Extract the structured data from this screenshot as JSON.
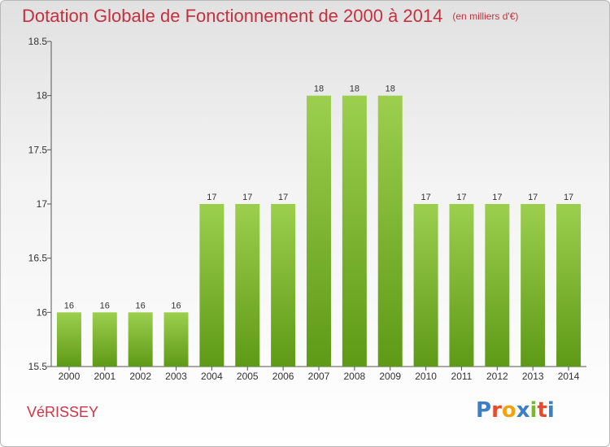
{
  "title": "Dotation Globale de Fonctionnement de 2000 à 2014",
  "unit": "(en milliers d'€)",
  "location": "VéRISSEY",
  "brand": {
    "letters": [
      "P",
      "r",
      "o",
      "x",
      "i",
      "t",
      "i"
    ],
    "colors": [
      "#3d7ec4",
      "#e94b2a",
      "#f2a20a",
      "#3d7ec4",
      "#7bb62b",
      "#e94b2a",
      "#3d7ec4"
    ]
  },
  "colors": {
    "bar_top": "#9ccf4e",
    "bar_bottom": "#5e9a16",
    "axis": "#555555",
    "grid_tick": "#555555"
  },
  "chart_data": {
    "type": "bar",
    "title": "Dotation Globale de Fonctionnement de 2000 à 2014",
    "xlabel": "",
    "ylabel": "",
    "ylim": [
      15.5,
      18.5
    ],
    "yticks": [
      "15.5",
      "16",
      "16.5",
      "17",
      "17.5",
      "18",
      "18.5"
    ],
    "categories": [
      "2000",
      "2001",
      "2002",
      "2003",
      "2004",
      "2005",
      "2006",
      "2007",
      "2008",
      "2009",
      "2010",
      "2011",
      "2012",
      "2013",
      "2014"
    ],
    "values": [
      16,
      16,
      16,
      16,
      17,
      17,
      17,
      18,
      18,
      18,
      17,
      17,
      17,
      17,
      17
    ],
    "data_labels": [
      "16",
      "16",
      "16",
      "16",
      "17",
      "17",
      "17",
      "18",
      "18",
      "18",
      "17",
      "17",
      "17",
      "17",
      "17"
    ],
    "grid": false,
    "legend": "none"
  }
}
